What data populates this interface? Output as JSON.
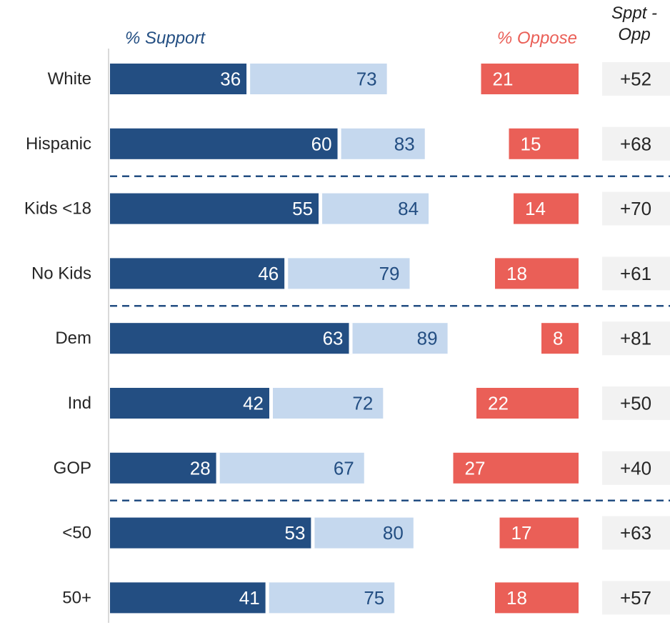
{
  "headers": {
    "support": "% Support",
    "oppose": "% Oppose",
    "diff_line1": "Sppt -",
    "diff_line2": "Opp"
  },
  "colors": {
    "strong_support": "#234e82",
    "total_support": "#c5d8ee",
    "oppose": "#ea5f57",
    "diff_box": "#f2f2f2",
    "divider": "#234e82",
    "support_header": "#234e82",
    "oppose_header": "#ea5f57",
    "axis": "#d9d9d9"
  },
  "chart_data": {
    "type": "bar",
    "categories": [
      "White",
      "Hispanic",
      "Kids <18",
      "No Kids",
      "Dem",
      "Ind",
      "GOP",
      "<50",
      "50+"
    ],
    "series": [
      {
        "values": [
          36,
          60,
          55,
          46,
          63,
          42,
          28,
          53,
          41
        ]
      },
      {
        "values": [
          73,
          83,
          84,
          79,
          89,
          72,
          67,
          80,
          75
        ]
      },
      {
        "values": [
          21,
          15,
          14,
          18,
          8,
          22,
          27,
          17,
          18
        ]
      },
      {
        "values": [
          "+52",
          "+68",
          "+70",
          "+61",
          "+81",
          "+50",
          "+40",
          "+63",
          "+57"
        ]
      }
    ],
    "group_dividers_after": [
      "Hispanic",
      "No Kids",
      "GOP"
    ]
  }
}
